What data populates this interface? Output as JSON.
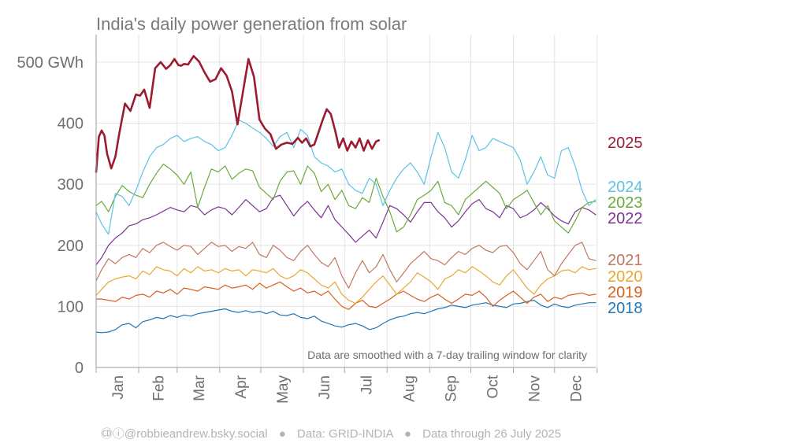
{
  "chart_data": {
    "type": "line",
    "title": "India's daily power generation from solar",
    "ylabel": "",
    "y_unit_label": "500 GWh",
    "y_ticks": [
      0,
      100,
      200,
      300,
      400,
      500
    ],
    "ylim": [
      0,
      545
    ],
    "months": [
      "Jan",
      "Feb",
      "Mar",
      "Apr",
      "May",
      "Jun",
      "Jul",
      "Aug",
      "Sep",
      "Oct",
      "Nov",
      "Dec"
    ],
    "annotation": "Data are smoothed with a 7-day trailing window for clarity",
    "series": [
      {
        "name": "2025",
        "color": "#9b1b30",
        "bold": true,
        "x": [
          1,
          3,
          5,
          7,
          9,
          12,
          15,
          18,
          22,
          26,
          30,
          33,
          36,
          40,
          44,
          48,
          52,
          55,
          58,
          61,
          63,
          65,
          68,
          72,
          76,
          80,
          84,
          88,
          92,
          96,
          100,
          104,
          108,
          112,
          116,
          120,
          124,
          128,
          132,
          136,
          140,
          144,
          148,
          151,
          154,
          157,
          160,
          163,
          166,
          169,
          172,
          175,
          178,
          181,
          184,
          187,
          190,
          193,
          196,
          199,
          202,
          205,
          207
        ],
        "y": [
          320,
          378,
          388,
          380,
          350,
          326,
          345,
          385,
          432,
          420,
          447,
          445,
          455,
          425,
          490,
          500,
          489,
          495,
          505,
          495,
          494,
          497,
          496,
          510,
          501,
          483,
          468,
          472,
          490,
          478,
          452,
          398,
          452,
          505,
          476,
          406,
          391,
          382,
          358,
          365,
          368,
          366,
          376,
          368,
          375,
          362,
          365,
          385,
          405,
          423,
          415,
          389,
          360,
          375,
          355,
          370,
          360,
          375,
          355,
          372,
          358,
          370,
          372
        ]
      },
      {
        "name": "2024",
        "color": "#5bc3e6",
        "x": [
          1,
          5,
          10,
          15,
          20,
          25,
          30,
          35,
          40,
          45,
          50,
          55,
          60,
          65,
          70,
          75,
          80,
          85,
          90,
          95,
          100,
          105,
          110,
          115,
          120,
          125,
          130,
          135,
          140,
          145,
          150,
          155,
          160,
          165,
          170,
          175,
          180,
          185,
          190,
          195,
          200,
          205,
          210,
          215,
          220,
          225,
          230,
          235,
          240,
          245,
          250,
          255,
          260,
          265,
          270,
          275,
          280,
          285,
          290,
          295,
          300,
          305,
          310,
          315,
          320,
          325,
          330,
          335,
          340,
          345,
          350,
          355,
          360,
          365
        ],
        "y": [
          255,
          235,
          218,
          285,
          280,
          265,
          290,
          320,
          345,
          360,
          365,
          375,
          380,
          370,
          375,
          378,
          370,
          365,
          355,
          360,
          380,
          405,
          400,
          392,
          385,
          375,
          362,
          378,
          385,
          360,
          390,
          380,
          345,
          335,
          330,
          320,
          325,
          300,
          290,
          285,
          310,
          300,
          265,
          290,
          310,
          325,
          335,
          320,
          300,
          345,
          385,
          360,
          320,
          310,
          340,
          380,
          355,
          360,
          375,
          370,
          365,
          360,
          340,
          300,
          320,
          345,
          315,
          310,
          355,
          360,
          330,
          290,
          265,
          275
        ]
      },
      {
        "name": "2023",
        "color": "#6aaa3c",
        "x": [
          1,
          5,
          10,
          15,
          20,
          25,
          30,
          35,
          40,
          45,
          50,
          55,
          60,
          65,
          70,
          75,
          80,
          85,
          90,
          95,
          100,
          105,
          110,
          115,
          120,
          125,
          130,
          135,
          140,
          145,
          150,
          155,
          160,
          165,
          170,
          175,
          180,
          185,
          190,
          195,
          200,
          205,
          210,
          215,
          220,
          225,
          230,
          235,
          240,
          245,
          250,
          255,
          260,
          265,
          270,
          275,
          280,
          285,
          290,
          295,
          300,
          305,
          310,
          315,
          320,
          325,
          330,
          335,
          340,
          345,
          350,
          355,
          360,
          365
        ],
        "y": [
          265,
          272,
          255,
          280,
          298,
          288,
          282,
          278,
          300,
          318,
          333,
          325,
          315,
          300,
          320,
          262,
          295,
          325,
          320,
          330,
          308,
          318,
          325,
          322,
          295,
          285,
          275,
          305,
          320,
          322,
          300,
          330,
          318,
          288,
          300,
          275,
          290,
          265,
          260,
          278,
          270,
          310,
          280,
          255,
          222,
          230,
          250,
          275,
          282,
          290,
          305,
          270,
          265,
          250,
          275,
          285,
          295,
          305,
          295,
          285,
          260,
          275,
          282,
          290,
          270,
          250,
          265,
          240,
          230,
          220,
          240,
          262,
          270,
          272
        ]
      },
      {
        "name": "2022",
        "color": "#7b3294",
        "x": [
          1,
          5,
          10,
          15,
          20,
          25,
          30,
          35,
          40,
          45,
          50,
          55,
          60,
          65,
          70,
          75,
          80,
          85,
          90,
          95,
          100,
          105,
          110,
          115,
          120,
          125,
          130,
          135,
          140,
          145,
          150,
          155,
          160,
          165,
          170,
          175,
          180,
          185,
          190,
          195,
          200,
          205,
          210,
          215,
          220,
          225,
          230,
          235,
          240,
          245,
          250,
          255,
          260,
          265,
          270,
          275,
          280,
          285,
          290,
          295,
          300,
          305,
          310,
          315,
          320,
          325,
          330,
          335,
          340,
          345,
          350,
          355,
          360,
          365
        ],
        "y": [
          168,
          180,
          200,
          212,
          220,
          232,
          235,
          242,
          245,
          250,
          256,
          262,
          258,
          255,
          265,
          262,
          250,
          258,
          263,
          260,
          250,
          262,
          275,
          265,
          255,
          260,
          278,
          282,
          265,
          248,
          262,
          272,
          258,
          245,
          265,
          242,
          230,
          218,
          205,
          215,
          225,
          212,
          238,
          265,
          260,
          250,
          238,
          255,
          270,
          270,
          255,
          245,
          230,
          240,
          255,
          268,
          275,
          260,
          255,
          245,
          265,
          260,
          245,
          250,
          258,
          270,
          260,
          248,
          240,
          235,
          255,
          262,
          258,
          250
        ]
      },
      {
        "name": "2021",
        "color": "#c0785f",
        "x": [
          1,
          5,
          10,
          15,
          20,
          25,
          30,
          35,
          40,
          45,
          50,
          55,
          60,
          65,
          70,
          75,
          80,
          85,
          90,
          95,
          100,
          105,
          110,
          115,
          120,
          125,
          130,
          135,
          140,
          145,
          150,
          155,
          160,
          165,
          170,
          175,
          180,
          185,
          190,
          195,
          200,
          205,
          210,
          215,
          220,
          225,
          230,
          235,
          240,
          245,
          250,
          255,
          260,
          265,
          270,
          275,
          280,
          285,
          290,
          295,
          300,
          305,
          310,
          315,
          320,
          325,
          330,
          335,
          340,
          345,
          350,
          355,
          360,
          365
        ],
        "y": [
          142,
          160,
          178,
          170,
          180,
          185,
          180,
          195,
          188,
          200,
          205,
          198,
          192,
          200,
          198,
          185,
          195,
          205,
          198,
          200,
          190,
          198,
          195,
          205,
          185,
          180,
          200,
          192,
          180,
          175,
          190,
          200,
          185,
          172,
          165,
          180,
          150,
          130,
          155,
          175,
          155,
          165,
          185,
          160,
          140,
          155,
          170,
          180,
          190,
          178,
          175,
          168,
          180,
          190,
          185,
          195,
          200,
          192,
          188,
          198,
          200,
          188,
          170,
          160,
          175,
          190,
          160,
          150,
          170,
          185,
          200,
          205,
          178,
          175
        ]
      },
      {
        "name": "2020",
        "color": "#e8a830",
        "x": [
          1,
          5,
          10,
          15,
          20,
          25,
          30,
          35,
          40,
          45,
          50,
          55,
          60,
          65,
          70,
          75,
          80,
          85,
          90,
          95,
          100,
          105,
          110,
          115,
          120,
          125,
          130,
          135,
          140,
          145,
          150,
          155,
          160,
          165,
          170,
          175,
          180,
          185,
          190,
          195,
          200,
          205,
          210,
          215,
          220,
          225,
          230,
          235,
          240,
          245,
          250,
          255,
          260,
          265,
          270,
          275,
          280,
          285,
          290,
          295,
          300,
          305,
          310,
          315,
          320,
          325,
          330,
          335,
          340,
          345,
          350,
          355,
          360,
          365
        ],
        "y": [
          118,
          128,
          140,
          145,
          148,
          150,
          145,
          158,
          152,
          165,
          160,
          158,
          150,
          162,
          155,
          165,
          158,
          160,
          155,
          162,
          158,
          160,
          150,
          160,
          158,
          155,
          162,
          150,
          145,
          150,
          160,
          155,
          145,
          135,
          130,
          140,
          120,
          110,
          105,
          115,
          128,
          140,
          150,
          135,
          120,
          130,
          140,
          155,
          148,
          140,
          128,
          145,
          150,
          160,
          155,
          165,
          158,
          150,
          140,
          135,
          150,
          160,
          145,
          130,
          120,
          135,
          145,
          150,
          158,
          160,
          155,
          165,
          160,
          162
        ]
      },
      {
        "name": "2019",
        "color": "#d95f1e",
        "x": [
          1,
          5,
          10,
          15,
          20,
          25,
          30,
          35,
          40,
          45,
          50,
          55,
          60,
          65,
          70,
          75,
          80,
          85,
          90,
          95,
          100,
          105,
          110,
          115,
          120,
          125,
          130,
          135,
          140,
          145,
          150,
          155,
          160,
          165,
          170,
          175,
          180,
          185,
          190,
          195,
          200,
          205,
          210,
          215,
          220,
          225,
          230,
          235,
          240,
          245,
          250,
          255,
          260,
          265,
          270,
          275,
          280,
          285,
          290,
          295,
          300,
          305,
          310,
          315,
          320,
          325,
          330,
          335,
          340,
          345,
          350,
          355,
          360,
          365
        ],
        "y": [
          112,
          112,
          110,
          108,
          115,
          112,
          118,
          120,
          115,
          125,
          122,
          128,
          120,
          130,
          128,
          125,
          132,
          130,
          128,
          135,
          130,
          132,
          135,
          128,
          138,
          130,
          135,
          140,
          132,
          125,
          130,
          122,
          125,
          118,
          125,
          112,
          100,
          95,
          105,
          110,
          100,
          98,
          105,
          112,
          120,
          125,
          118,
          112,
          108,
          115,
          120,
          112,
          105,
          112,
          120,
          118,
          125,
          115,
          100,
          110,
          118,
          125,
          115,
          105,
          115,
          120,
          108,
          115,
          112,
          118,
          120,
          122,
          118,
          120
        ]
      },
      {
        "name": "2018",
        "color": "#1f77b4",
        "x": [
          1,
          5,
          10,
          15,
          20,
          25,
          30,
          35,
          40,
          45,
          50,
          55,
          60,
          65,
          70,
          75,
          80,
          85,
          90,
          95,
          100,
          105,
          110,
          115,
          120,
          125,
          130,
          135,
          140,
          145,
          150,
          155,
          160,
          165,
          170,
          175,
          180,
          185,
          190,
          195,
          200,
          205,
          210,
          215,
          220,
          225,
          230,
          235,
          240,
          245,
          250,
          255,
          260,
          265,
          270,
          275,
          280,
          285,
          290,
          295,
          300,
          305,
          310,
          315,
          320,
          325,
          330,
          335,
          340,
          345,
          350,
          355,
          360,
          365
        ],
        "y": [
          58,
          57,
          58,
          62,
          70,
          72,
          65,
          75,
          78,
          82,
          80,
          85,
          82,
          86,
          84,
          88,
          90,
          92,
          94,
          96,
          92,
          90,
          93,
          90,
          92,
          88,
          92,
          86,
          85,
          88,
          82,
          80,
          84,
          76,
          72,
          68,
          66,
          70,
          72,
          68,
          62,
          65,
          72,
          78,
          82,
          84,
          88,
          90,
          88,
          92,
          96,
          98,
          102,
          100,
          98,
          102,
          104,
          106,
          102,
          100,
          98,
          104,
          105,
          108,
          110,
          102,
          98,
          104,
          100,
          98,
          102,
          104,
          106,
          106
        ]
      }
    ]
  },
  "footer": {
    "credit": "🄭ⓘ@robbieandrew.bsky.social",
    "source": "Data: GRID-INDIA",
    "through": "Data through 26 July 2025",
    "separator": "●"
  }
}
